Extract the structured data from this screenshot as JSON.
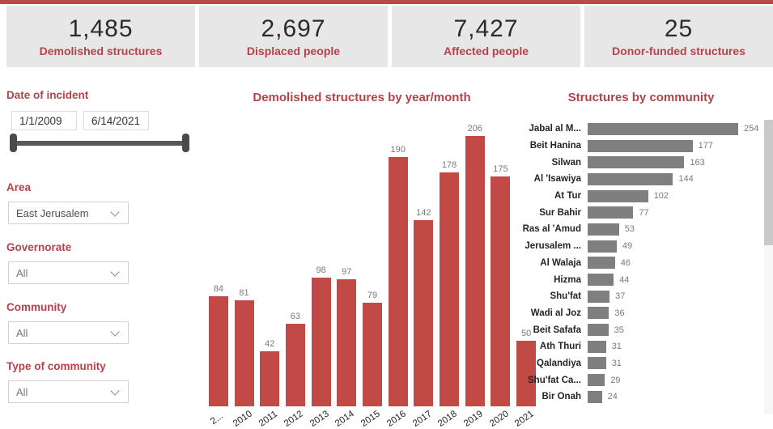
{
  "theme": {
    "accent_red": "#b5424a",
    "top_bar_color": "#b84a48",
    "card_background": "#e7e7e7",
    "column_bar_color": "#c14a47",
    "community_bar_color": "#7f7f7f"
  },
  "cards": [
    {
      "value": "1,485",
      "label": "Demolished structures"
    },
    {
      "value": "2,697",
      "label": "Displaced people"
    },
    {
      "value": "7,427",
      "label": "Affected people"
    },
    {
      "value": "25",
      "label": "Donor-funded structures"
    }
  ],
  "filters": {
    "date": {
      "label": "Date of incident",
      "start": "1/1/2009",
      "end": "6/14/2021"
    },
    "dropdowns": [
      {
        "label": "Area",
        "value": "East Jerusalem"
      },
      {
        "label": "Governorate",
        "value": "All"
      },
      {
        "label": "Community",
        "value": "All"
      },
      {
        "label": "Type of community",
        "value": "All"
      }
    ]
  },
  "chart_data": [
    {
      "type": "bar",
      "orientation": "vertical",
      "title": "Demolished structures by year/month",
      "categories": [
        "2...",
        "2010",
        "2011",
        "2012",
        "2013",
        "2014",
        "2015",
        "2016",
        "2017",
        "2018",
        "2019",
        "2020",
        "2021"
      ],
      "values": [
        84,
        81,
        42,
        63,
        98,
        97,
        79,
        190,
        142,
        178,
        206,
        175,
        50
      ],
      "bar_color": "#c14a47",
      "data_labels": true,
      "ylim": [
        0,
        206
      ],
      "grid": false,
      "legend": "none"
    },
    {
      "type": "bar",
      "orientation": "horizontal",
      "title": "Structures by community",
      "categories": [
        "Jabal al M...",
        "Beit Hanina",
        "Silwan",
        "Al 'Isawiya",
        "At Tur",
        "Sur Bahir",
        "Ras al 'Amud",
        "Jerusalem ...",
        "Al Walaja",
        "Hizma",
        "Shu'fat",
        "Wadi al Joz",
        "Beit Safafa",
        "Ath Thuri",
        "Qalandiya",
        "Shu'fat Ca...",
        "Bir Onah"
      ],
      "values": [
        254,
        177,
        163,
        144,
        102,
        77,
        53,
        49,
        46,
        44,
        37,
        36,
        35,
        31,
        31,
        29,
        24
      ],
      "bar_color": "#7f7f7f",
      "data_labels": true,
      "xlim": [
        0,
        254
      ],
      "grid": false,
      "legend": "none"
    }
  ]
}
